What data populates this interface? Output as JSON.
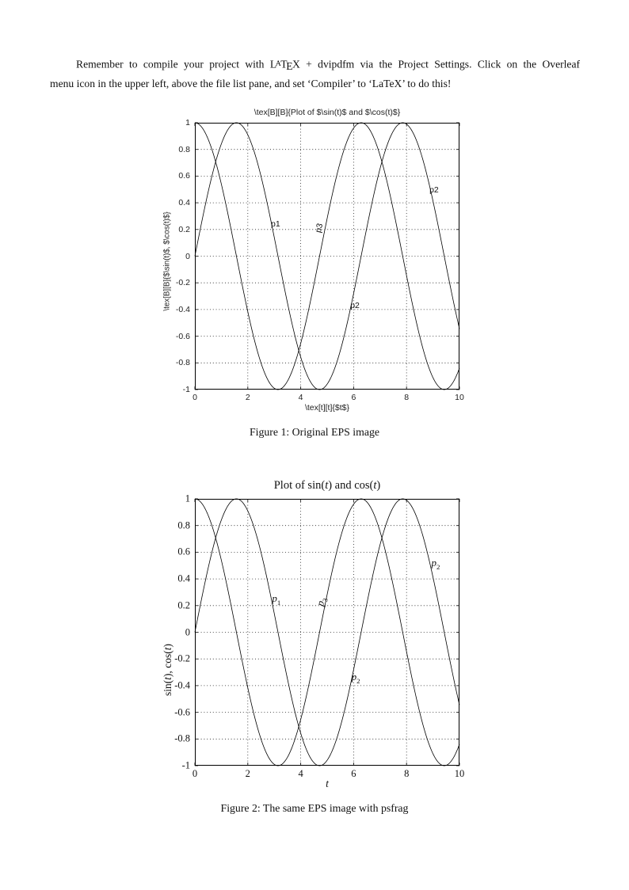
{
  "intro": {
    "lines": [
      [
        {
          "text": "Remember to compile your project with "
        },
        {
          "text": "LaTeX",
          "logo": true
        },
        {
          "text": " + dvipdfm via the Project Settings. Click on the Overleaf"
        }
      ],
      [
        {
          "text": "menu icon in the upper left, above the file list pane, and set ‘Compiler’ to ‘LaTeX’ to do this!"
        }
      ]
    ]
  },
  "figures": [
    {
      "caption": "Figure 1: Original EPS image"
    },
    {
      "caption": "Figure 2: The same EPS image with psfrag"
    }
  ],
  "chart_data": [
    {
      "type": "line",
      "title": "\\tex[B][B]{Plot of $\\sin(t)$ and $\\cos(t)$}",
      "title_segments": [
        {
          "text": "\\tex[B][B]{Plot of $\\sin(t)$ and $\\cos(t)$}"
        }
      ],
      "xlabel_segments": [
        {
          "text": "\\tex[t][t]{$t$}"
        }
      ],
      "ylabel_segments": [
        {
          "text": "\\tex[B][B]{$\\sin(t)$, $\\cos(t)$}"
        }
      ],
      "x_range": [
        0,
        10
      ],
      "y_range": [
        -1,
        1
      ],
      "x_ticks": [
        0,
        2,
        4,
        6,
        8,
        10
      ],
      "y_ticks": [
        1,
        0.8,
        0.6,
        0.4,
        0.2,
        0,
        -0.2,
        -0.4,
        -0.6,
        -0.8,
        -1
      ],
      "grid": true,
      "line_color": "#000000",
      "series": [
        {
          "name": "sin(t)",
          "fn": "sin"
        },
        {
          "name": "cos(t)",
          "fn": "cos"
        }
      ],
      "annotations": [
        {
          "segments": [
            {
              "text": "p1"
            }
          ],
          "fx": 0.305,
          "fy": 0.38,
          "rotate": 0
        },
        {
          "segments": [
            {
              "text": "p3"
            }
          ],
          "fx": 0.47,
          "fy": 0.395,
          "rotate": -76
        },
        {
          "segments": [
            {
              "text": "p2"
            }
          ],
          "fx": 0.904,
          "fy": 0.252,
          "rotate": 0
        },
        {
          "segments": [
            {
              "text": "p2"
            }
          ],
          "fx": 0.605,
          "fy": 0.685,
          "rotate": 0
        }
      ]
    },
    {
      "type": "line",
      "title": "Plot of sin(t) and cos(t)",
      "title_segments": [
        {
          "text": "Plot of sin("
        },
        {
          "text": "t",
          "italic": true
        },
        {
          "text": ") and cos("
        },
        {
          "text": "t",
          "italic": true
        },
        {
          "text": ")"
        }
      ],
      "xlabel_segments": [
        {
          "text": "t",
          "italic": true
        }
      ],
      "ylabel_segments": [
        {
          "text": "sin("
        },
        {
          "text": "t",
          "italic": true
        },
        {
          "text": "), cos("
        },
        {
          "text": "t",
          "italic": true
        },
        {
          "text": ")"
        }
      ],
      "x_range": [
        0,
        10
      ],
      "y_range": [
        -1,
        1
      ],
      "x_ticks": [
        0,
        2,
        4,
        6,
        8,
        10
      ],
      "y_ticks": [
        1,
        0.8,
        0.6,
        0.4,
        0.2,
        0,
        -0.2,
        -0.4,
        -0.6,
        -0.8,
        -1
      ],
      "grid": true,
      "line_color": "#000000",
      "series": [
        {
          "name": "sin(t)",
          "fn": "sin"
        },
        {
          "name": "cos(t)",
          "fn": "cos"
        }
      ],
      "annotations": [
        {
          "segments": [
            {
              "text": "p",
              "italic": true
            },
            {
              "text": "1",
              "sub": true
            }
          ],
          "fx": 0.308,
          "fy": 0.377,
          "rotate": 0
        },
        {
          "segments": [
            {
              "text": "p",
              "italic": true
            },
            {
              "text": "3",
              "sub": true
            }
          ],
          "fx": 0.479,
          "fy": 0.386,
          "rotate": -76
        },
        {
          "segments": [
            {
              "text": "p",
              "italic": true
            },
            {
              "text": "2",
              "sub": true
            }
          ],
          "fx": 0.91,
          "fy": 0.243,
          "rotate": 0
        },
        {
          "segments": [
            {
              "text": "p",
              "italic": true
            },
            {
              "text": "2",
              "sub": true
            }
          ],
          "fx": 0.608,
          "fy": 0.67,
          "rotate": 0
        }
      ]
    }
  ]
}
